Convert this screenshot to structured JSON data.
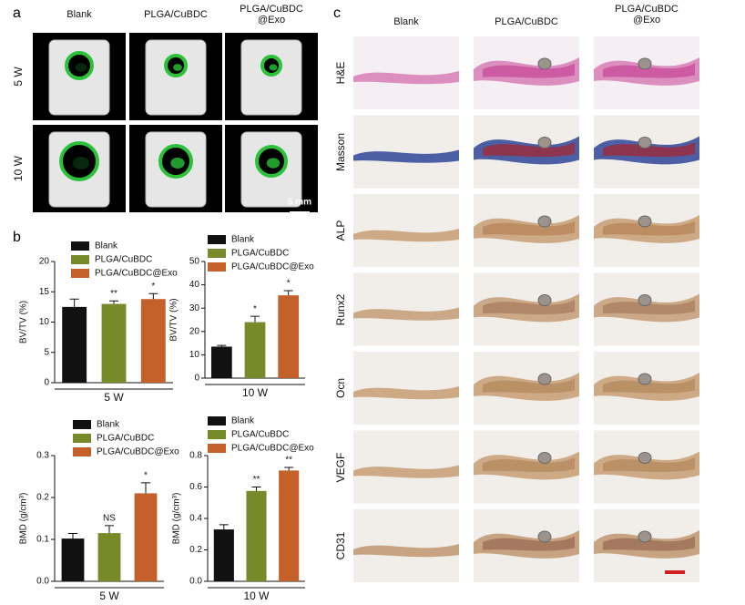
{
  "panels": {
    "a": "a",
    "b": "b",
    "c": "c"
  },
  "micro_ct": {
    "columns": [
      "Blank",
      "PLGA/CuBDC",
      "PLGA/CuBDC\n@Exo"
    ],
    "rows": [
      "5 W",
      "10 W"
    ],
    "scale_bar": "5 mm"
  },
  "histology": {
    "columns": [
      "Blank",
      "PLGA/CuBDC",
      "PLGA/CuBDC\n@Exo"
    ],
    "rows": [
      "H&E",
      "Masson",
      "ALP",
      "Runx2",
      "Ocn",
      "VEGF",
      "CD31"
    ]
  },
  "chart_data": [
    {
      "type": "bar",
      "y_label": "BV/TV (%)",
      "x_label": "5 W",
      "categories": [
        "Blank",
        "PLGA/CuBDC",
        "PLGA/CuBDC@Exo"
      ],
      "colors": [
        "#111111",
        "#768a2a",
        "#c4612a"
      ],
      "values": [
        12.5,
        13,
        13.8
      ],
      "errors": [
        1.3,
        0.5,
        0.9
      ],
      "annotations": [
        null,
        "**",
        "*"
      ],
      "ylim": [
        0,
        20
      ],
      "yticks": [
        0,
        5,
        10,
        15,
        20
      ]
    },
    {
      "type": "bar",
      "y_label": "BV/TV (%)",
      "x_label": "10 W",
      "categories": [
        "Blank",
        "PLGA/CuBDC",
        "PLGA/CuBDC@Exo"
      ],
      "colors": [
        "#111111",
        "#768a2a",
        "#c4612a"
      ],
      "values": [
        13.5,
        24,
        35.5
      ],
      "errors": [
        0.5,
        2.5,
        2
      ],
      "annotations": [
        null,
        "*",
        "*"
      ],
      "ylim": [
        0,
        50
      ],
      "yticks": [
        0,
        10,
        20,
        30,
        40,
        50
      ]
    },
    {
      "type": "bar",
      "y_label": "BMD (g/cm³)",
      "x_label": "5 W",
      "categories": [
        "Blank",
        "PLGA/CuBDC",
        "PLGA/CuBDC@Exo"
      ],
      "colors": [
        "#111111",
        "#768a2a",
        "#c4612a"
      ],
      "values": [
        0.102,
        0.115,
        0.21
      ],
      "errors": [
        0.012,
        0.018,
        0.025
      ],
      "annotations": [
        null,
        "NS",
        "*"
      ],
      "ylim": [
        0,
        0.3
      ],
      "yticks": [
        {
          "value": 0,
          "label": "0.0"
        },
        0.1,
        0.2,
        0.3
      ]
    },
    {
      "type": "bar",
      "y_label": "BMD (g/cm³)",
      "x_label": "10 W",
      "categories": [
        "Blank",
        "PLGA/CuBDC",
        "PLGA/CuBDC@Exo"
      ],
      "colors": [
        "#111111",
        "#768a2a",
        "#c4612a"
      ],
      "values": [
        0.33,
        0.575,
        0.705
      ],
      "errors": [
        0.03,
        0.025,
        0.02
      ],
      "annotations": [
        null,
        "**",
        "**"
      ],
      "ylim": [
        0,
        0.8
      ],
      "yticks": [
        {
          "value": 0,
          "label": "0.0"
        },
        0.2,
        0.4,
        0.6,
        0.8
      ]
    }
  ]
}
